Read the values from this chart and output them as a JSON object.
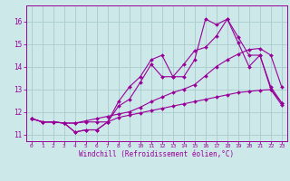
{
  "xlabel": "Windchill (Refroidissement éolien,°C)",
  "bg_color": "#cce8e8",
  "line_color": "#990099",
  "grid_color": "#aacccc",
  "xlim": [
    -0.5,
    23.5
  ],
  "ylim": [
    10.7,
    16.7
  ],
  "xticks": [
    0,
    1,
    2,
    3,
    4,
    5,
    6,
    7,
    8,
    9,
    10,
    11,
    12,
    13,
    14,
    15,
    16,
    17,
    18,
    19,
    20,
    21,
    22,
    23
  ],
  "yticks": [
    11,
    12,
    13,
    14,
    15,
    16
  ],
  "series": [
    [
      11.7,
      11.55,
      11.55,
      11.5,
      11.1,
      11.2,
      11.2,
      11.55,
      12.45,
      13.1,
      13.55,
      14.3,
      14.5,
      13.55,
      13.55,
      14.3,
      16.1,
      15.85,
      16.1,
      15.3,
      14.5,
      14.5,
      13.1,
      12.4
    ],
    [
      11.7,
      11.55,
      11.55,
      11.5,
      11.1,
      11.2,
      11.2,
      11.55,
      12.25,
      12.55,
      13.3,
      14.1,
      13.55,
      13.55,
      14.1,
      14.7,
      14.85,
      15.35,
      16.1,
      15.05,
      14.0,
      14.5,
      13.0,
      12.4
    ],
    [
      11.7,
      11.55,
      11.55,
      11.5,
      11.5,
      11.55,
      11.55,
      11.55,
      11.75,
      11.85,
      11.95,
      12.05,
      12.15,
      12.25,
      12.35,
      12.45,
      12.55,
      12.65,
      12.75,
      12.85,
      12.9,
      12.95,
      12.98,
      12.3
    ],
    [
      11.7,
      11.55,
      11.55,
      11.5,
      11.5,
      11.6,
      11.7,
      11.8,
      11.9,
      12.0,
      12.2,
      12.45,
      12.65,
      12.85,
      13.0,
      13.2,
      13.6,
      14.0,
      14.3,
      14.55,
      14.75,
      14.8,
      14.5,
      13.1
    ]
  ]
}
